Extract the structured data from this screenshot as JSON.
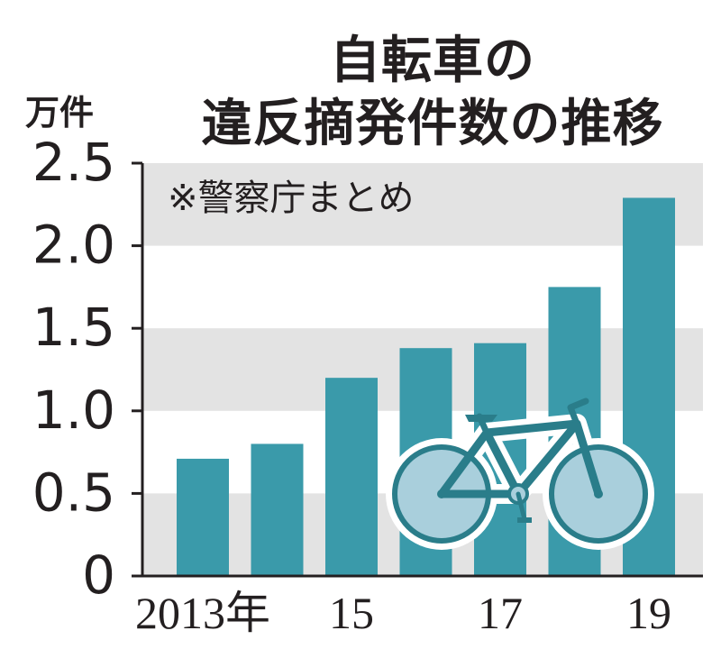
{
  "chart_data": {
    "type": "bar",
    "title": [
      "自転車の",
      "違反摘発件数の推移"
    ],
    "unit_label": "万件",
    "source_note": "※警察庁まとめ",
    "categories": [
      "2013",
      "14",
      "15",
      "16",
      "17",
      "18",
      "19"
    ],
    "x_tick_labels": [
      {
        "category": "2013",
        "label": "2013年"
      },
      {
        "category": "15",
        "label": "15"
      },
      {
        "category": "17",
        "label": "17"
      },
      {
        "category": "19",
        "label": "19"
      }
    ],
    "values": [
      0.71,
      0.8,
      1.2,
      1.38,
      1.41,
      1.75,
      2.29
    ],
    "ylim": [
      0,
      2.5
    ],
    "y_ticks": [
      "0",
      "0.5",
      "1.0",
      "1.5",
      "2.0",
      "2.5"
    ],
    "grid": "alternating horizontal bands",
    "colors": {
      "bar": "#3a9aaa",
      "band": "#e3e3e3",
      "axis": "#231f20",
      "bicycle": "#2a7d8a",
      "wheel_fill": "#a9cfdc"
    },
    "decoration": "bicycle-illustration"
  }
}
